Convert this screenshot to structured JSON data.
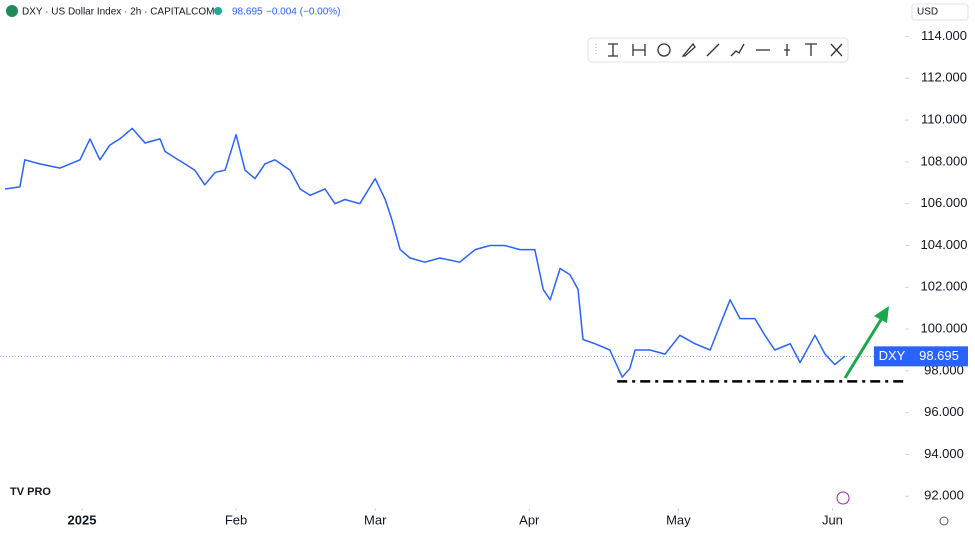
{
  "chart_data": {
    "type": "line",
    "title": "DXY · US Dollar Index · 2h · CAPITALCOM",
    "change_text": "−0.004 (−0.00%)",
    "currency": "USD",
    "symbol": "DXY",
    "last_price": 98.695,
    "support_level": 97.5,
    "color": "#2962ff",
    "x": [
      -15.5,
      -12.5,
      -11.5,
      -8.5,
      -4.4,
      -0.4,
      1.6,
      3.6,
      5.6,
      7.6,
      10.1,
      12.7,
      15.7,
      16.7,
      18.7,
      20.7,
      22.7,
      24.7,
      26.8,
      28.8,
      31,
      32.8,
      34.8,
      36.8,
      38.8,
      41.9,
      43.9,
      45.9,
      48.9,
      50.9,
      52.9,
      55.9,
      59,
      61,
      62.4,
      64,
      66,
      69,
      72,
      76,
      79.1,
      82.1,
      85.1,
      88.1,
      91.1,
      92.8,
      94.2,
      96.2,
      98.2,
      99.8,
      100.8,
      103.2,
      106.2,
      108.7,
      110.2,
      111.3,
      114.3,
      117.3,
      120.3,
      123.3,
      126.4,
      128.4,
      130.4,
      132.4,
      135.4,
      137.4,
      139.4,
      142.5,
      144.5,
      147.5,
      149.5,
      151.5,
      153.5
    ],
    "values": [
      106.7,
      106.8,
      108.1,
      107.9,
      107.7,
      108.1,
      109.1,
      108.1,
      108.8,
      109.1,
      109.6,
      108.9,
      109.1,
      108.5,
      108.2,
      107.9,
      107.6,
      106.9,
      107.5,
      107.6,
      109.3,
      107.6,
      107.2,
      107.9,
      108.1,
      107.6,
      106.7,
      106.4,
      106.7,
      106.0,
      106.2,
      106.0,
      107.2,
      106.2,
      105.2,
      103.8,
      103.4,
      103.2,
      103.4,
      103.2,
      103.8,
      104.0,
      104.0,
      103.8,
      103.8,
      101.9,
      101.4,
      102.9,
      102.6,
      101.9,
      99.5,
      99.3,
      99.0,
      97.7,
      98.1,
      99.0,
      99.0,
      98.8,
      99.7,
      99.3,
      99.0,
      100.2,
      101.4,
      100.5,
      100.5,
      99.7,
      99.0,
      99.3,
      98.4,
      99.7,
      98.8,
      98.3,
      98.7
    ],
    "xlim": [
      -16.5,
      165.6
    ],
    "xticks": [
      {
        "value": 0,
        "label": "2025"
      },
      {
        "value": 31,
        "label": "Feb"
      },
      {
        "value": 59,
        "label": "Mar"
      },
      {
        "value": 90,
        "label": "Apr"
      },
      {
        "value": 120,
        "label": "May"
      },
      {
        "value": 151,
        "label": "Jun"
      }
    ],
    "ylim": [
      91.2,
      115.6
    ],
    "yticks": [
      {
        "value": 92,
        "label": "92.000"
      },
      {
        "value": 94,
        "label": "94.000"
      },
      {
        "value": 96,
        "label": "96.000"
      },
      {
        "value": 98,
        "label": "98.000"
      },
      {
        "value": 100,
        "label": "100.000"
      },
      {
        "value": 102,
        "label": "102.000"
      },
      {
        "value": 104,
        "label": "104.000"
      },
      {
        "value": 106,
        "label": "106.000"
      },
      {
        "value": 108,
        "label": "108.000"
      },
      {
        "value": 110,
        "label": "110.000"
      },
      {
        "value": 112,
        "label": "112.000"
      },
      {
        "value": 114,
        "label": "114.000"
      }
    ],
    "grid": false
  }
}
